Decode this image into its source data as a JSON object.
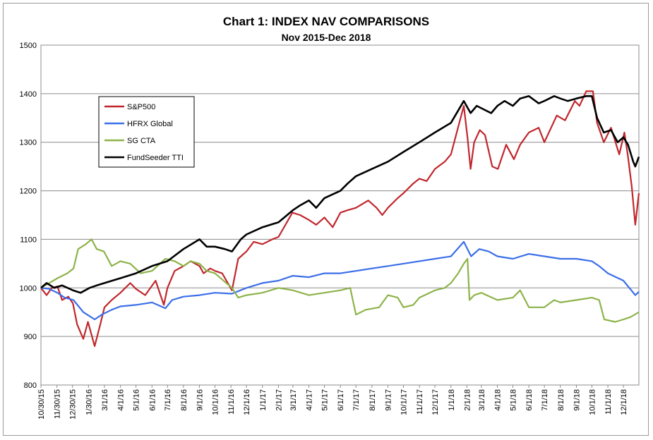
{
  "chart_data": {
    "type": "line",
    "title": "Chart 1: INDEX NAV COMPARISONS",
    "subtitle": "Nov 2015-Dec 2018",
    "ylim": [
      800,
      1500
    ],
    "y_ticks": [
      "800",
      "900",
      "1000",
      "1100",
      "1200",
      "1300",
      "1400",
      "1500"
    ],
    "x_range": [
      "2015-10-30",
      "2018-12-31"
    ],
    "x_ticks": [
      "10/30/15",
      "11/30/15",
      "12/30/15",
      "1/30/16",
      "3/1/16",
      "4/1/16",
      "5/1/16",
      "6/1/16",
      "7/1/16",
      "8/1/16",
      "9/1/16",
      "10/1/16",
      "11/1/16",
      "12/1/16",
      "1/1/17",
      "2/1/17",
      "3/1/17",
      "4/1/17",
      "5/1/17",
      "6/1/17",
      "7/1/17",
      "8/1/17",
      "9/1/17",
      "10/1/17",
      "11/1/17",
      "12/1/17",
      "1/1/18",
      "2/1/18",
      "3/1/18",
      "4/1/18",
      "5/1/18",
      "6/1/18",
      "7/1/18",
      "8/1/18",
      "9/1/18",
      "10/1/18",
      "11/1/18",
      "12/1/18"
    ],
    "grid": "horizontal",
    "legend_position": "upper-left",
    "series": [
      {
        "name": "S&P500",
        "color": "#c0272d",
        "points": [
          [
            "2015-10-30",
            1000
          ],
          [
            "2015-11-10",
            985
          ],
          [
            "2015-11-20",
            1000
          ],
          [
            "2015-12-01",
            1003
          ],
          [
            "2015-12-10",
            975
          ],
          [
            "2015-12-22",
            982
          ],
          [
            "2015-12-31",
            968
          ],
          [
            "2016-01-08",
            925
          ],
          [
            "2016-01-20",
            895
          ],
          [
            "2016-01-29",
            930
          ],
          [
            "2016-02-11",
            880
          ],
          [
            "2016-02-22",
            925
          ],
          [
            "2016-03-01",
            960
          ],
          [
            "2016-03-15",
            975
          ],
          [
            "2016-04-01",
            990
          ],
          [
            "2016-04-20",
            1010
          ],
          [
            "2016-05-01",
            998
          ],
          [
            "2016-05-19",
            985
          ],
          [
            "2016-06-08",
            1015
          ],
          [
            "2016-06-24",
            965
          ],
          [
            "2016-07-01",
            1000
          ],
          [
            "2016-07-15",
            1035
          ],
          [
            "2016-08-01",
            1045
          ],
          [
            "2016-08-15",
            1055
          ],
          [
            "2016-09-01",
            1045
          ],
          [
            "2016-09-09",
            1030
          ],
          [
            "2016-09-22",
            1040
          ],
          [
            "2016-10-01",
            1035
          ],
          [
            "2016-10-15",
            1030
          ],
          [
            "2016-11-03",
            995
          ],
          [
            "2016-11-15",
            1060
          ],
          [
            "2016-12-01",
            1075
          ],
          [
            "2016-12-15",
            1095
          ],
          [
            "2017-01-01",
            1090
          ],
          [
            "2017-01-20",
            1100
          ],
          [
            "2017-02-01",
            1105
          ],
          [
            "2017-02-28",
            1155
          ],
          [
            "2017-03-15",
            1150
          ],
          [
            "2017-04-01",
            1140
          ],
          [
            "2017-04-15",
            1130
          ],
          [
            "2017-05-01",
            1145
          ],
          [
            "2017-05-17",
            1125
          ],
          [
            "2017-06-01",
            1155
          ],
          [
            "2017-06-15",
            1160
          ],
          [
            "2017-07-01",
            1165
          ],
          [
            "2017-07-25",
            1180
          ],
          [
            "2017-08-10",
            1165
          ],
          [
            "2017-08-21",
            1150
          ],
          [
            "2017-09-01",
            1165
          ],
          [
            "2017-09-20",
            1185
          ],
          [
            "2017-10-01",
            1195
          ],
          [
            "2017-10-20",
            1215
          ],
          [
            "2017-11-01",
            1225
          ],
          [
            "2017-11-15",
            1220
          ],
          [
            "2017-12-01",
            1245
          ],
          [
            "2017-12-20",
            1260
          ],
          [
            "2018-01-01",
            1275
          ],
          [
            "2018-01-26",
            1375
          ],
          [
            "2018-02-02",
            1310
          ],
          [
            "2018-02-08",
            1245
          ],
          [
            "2018-02-15",
            1300
          ],
          [
            "2018-02-26",
            1325
          ],
          [
            "2018-03-08",
            1315
          ],
          [
            "2018-03-22",
            1250
          ],
          [
            "2018-04-02",
            1245
          ],
          [
            "2018-04-18",
            1295
          ],
          [
            "2018-05-03",
            1265
          ],
          [
            "2018-05-15",
            1295
          ],
          [
            "2018-06-01",
            1320
          ],
          [
            "2018-06-20",
            1330
          ],
          [
            "2018-07-01",
            1300
          ],
          [
            "2018-07-25",
            1355
          ],
          [
            "2018-08-10",
            1345
          ],
          [
            "2018-08-29",
            1385
          ],
          [
            "2018-09-07",
            1375
          ],
          [
            "2018-09-20",
            1405
          ],
          [
            "2018-10-03",
            1405
          ],
          [
            "2018-10-11",
            1340
          ],
          [
            "2018-10-24",
            1300
          ],
          [
            "2018-11-07",
            1330
          ],
          [
            "2018-11-23",
            1275
          ],
          [
            "2018-12-03",
            1320
          ],
          [
            "2018-12-10",
            1270
          ],
          [
            "2018-12-17",
            1210
          ],
          [
            "2018-12-24",
            1130
          ],
          [
            "2018-12-31",
            1195
          ]
        ]
      },
      {
        "name": "HFRX Global",
        "color": "#3b6ee8",
        "points": [
          [
            "2015-10-30",
            1000
          ],
          [
            "2015-11-15",
            998
          ],
          [
            "2015-12-01",
            990
          ],
          [
            "2015-12-15",
            980
          ],
          [
            "2016-01-01",
            975
          ],
          [
            "2016-01-20",
            950
          ],
          [
            "2016-02-11",
            935
          ],
          [
            "2016-02-25",
            945
          ],
          [
            "2016-03-15",
            955
          ],
          [
            "2016-04-01",
            962
          ],
          [
            "2016-05-01",
            965
          ],
          [
            "2016-06-01",
            970
          ],
          [
            "2016-06-27",
            958
          ],
          [
            "2016-07-10",
            975
          ],
          [
            "2016-08-01",
            982
          ],
          [
            "2016-09-01",
            985
          ],
          [
            "2016-10-01",
            990
          ],
          [
            "2016-11-03",
            988
          ],
          [
            "2016-12-01",
            1000
          ],
          [
            "2017-01-01",
            1010
          ],
          [
            "2017-02-01",
            1015
          ],
          [
            "2017-03-01",
            1025
          ],
          [
            "2017-04-01",
            1022
          ],
          [
            "2017-05-01",
            1030
          ],
          [
            "2017-06-01",
            1030
          ],
          [
            "2017-07-01",
            1035
          ],
          [
            "2017-08-01",
            1040
          ],
          [
            "2017-09-01",
            1045
          ],
          [
            "2017-10-01",
            1050
          ],
          [
            "2017-11-01",
            1055
          ],
          [
            "2017-12-01",
            1060
          ],
          [
            "2018-01-01",
            1065
          ],
          [
            "2018-01-26",
            1095
          ],
          [
            "2018-02-09",
            1065
          ],
          [
            "2018-02-25",
            1080
          ],
          [
            "2018-03-15",
            1075
          ],
          [
            "2018-04-01",
            1065
          ],
          [
            "2018-05-01",
            1060
          ],
          [
            "2018-06-01",
            1070
          ],
          [
            "2018-07-01",
            1065
          ],
          [
            "2018-08-01",
            1060
          ],
          [
            "2018-09-01",
            1060
          ],
          [
            "2018-10-01",
            1055
          ],
          [
            "2018-10-15",
            1045
          ],
          [
            "2018-11-01",
            1030
          ],
          [
            "2018-12-01",
            1015
          ],
          [
            "2018-12-24",
            985
          ],
          [
            "2018-12-31",
            992
          ]
        ]
      },
      {
        "name": "SG CTA",
        "color": "#8db34a",
        "points": [
          [
            "2015-10-30",
            1000
          ],
          [
            "2015-11-15",
            1010
          ],
          [
            "2015-12-01",
            1020
          ],
          [
            "2015-12-20",
            1030
          ],
          [
            "2016-01-01",
            1040
          ],
          [
            "2016-01-10",
            1080
          ],
          [
            "2016-01-25",
            1090
          ],
          [
            "2016-02-05",
            1100
          ],
          [
            "2016-02-15",
            1080
          ],
          [
            "2016-02-29",
            1075
          ],
          [
            "2016-03-15",
            1045
          ],
          [
            "2016-04-01",
            1055
          ],
          [
            "2016-04-20",
            1050
          ],
          [
            "2016-05-10",
            1030
          ],
          [
            "2016-06-01",
            1035
          ],
          [
            "2016-06-27",
            1060
          ],
          [
            "2016-07-15",
            1055
          ],
          [
            "2016-08-01",
            1045
          ],
          [
            "2016-08-15",
            1055
          ],
          [
            "2016-09-01",
            1050
          ],
          [
            "2016-09-15",
            1035
          ],
          [
            "2016-10-01",
            1030
          ],
          [
            "2016-11-03",
            1000
          ],
          [
            "2016-11-15",
            980
          ],
          [
            "2016-12-01",
            985
          ],
          [
            "2017-01-01",
            990
          ],
          [
            "2017-02-01",
            1000
          ],
          [
            "2017-03-01",
            995
          ],
          [
            "2017-04-01",
            985
          ],
          [
            "2017-05-01",
            990
          ],
          [
            "2017-06-01",
            995
          ],
          [
            "2017-06-20",
            1000
          ],
          [
            "2017-07-01",
            945
          ],
          [
            "2017-07-20",
            955
          ],
          [
            "2017-08-15",
            960
          ],
          [
            "2017-09-01",
            985
          ],
          [
            "2017-09-20",
            980
          ],
          [
            "2017-10-01",
            960
          ],
          [
            "2017-10-20",
            965
          ],
          [
            "2017-11-01",
            980
          ],
          [
            "2017-12-01",
            995
          ],
          [
            "2017-12-20",
            1000
          ],
          [
            "2018-01-01",
            1010
          ],
          [
            "2018-01-15",
            1030
          ],
          [
            "2018-01-26",
            1050
          ],
          [
            "2018-02-02",
            1060
          ],
          [
            "2018-02-06",
            975
          ],
          [
            "2018-02-15",
            985
          ],
          [
            "2018-03-01",
            990
          ],
          [
            "2018-04-01",
            975
          ],
          [
            "2018-05-01",
            980
          ],
          [
            "2018-05-15",
            995
          ],
          [
            "2018-06-01",
            960
          ],
          [
            "2018-07-01",
            960
          ],
          [
            "2018-07-20",
            975
          ],
          [
            "2018-08-01",
            970
          ],
          [
            "2018-09-01",
            975
          ],
          [
            "2018-10-01",
            980
          ],
          [
            "2018-10-15",
            975
          ],
          [
            "2018-10-25",
            935
          ],
          [
            "2018-11-15",
            930
          ],
          [
            "2018-12-01",
            935
          ],
          [
            "2018-12-15",
            940
          ],
          [
            "2018-12-31",
            950
          ]
        ]
      },
      {
        "name": "FundSeeder TTI",
        "color": "#000000",
        "points": [
          [
            "2015-10-30",
            1000
          ],
          [
            "2015-11-10",
            1010
          ],
          [
            "2015-11-25",
            1000
          ],
          [
            "2015-12-10",
            1005
          ],
          [
            "2015-12-31",
            995
          ],
          [
            "2016-01-15",
            990
          ],
          [
            "2016-02-01",
            1000
          ],
          [
            "2016-02-15",
            1005
          ],
          [
            "2016-03-01",
            1010
          ],
          [
            "2016-04-01",
            1020
          ],
          [
            "2016-05-01",
            1030
          ],
          [
            "2016-06-01",
            1045
          ],
          [
            "2016-07-01",
            1055
          ],
          [
            "2016-08-01",
            1080
          ],
          [
            "2016-09-01",
            1100
          ],
          [
            "2016-09-15",
            1085
          ],
          [
            "2016-10-01",
            1085
          ],
          [
            "2016-10-20",
            1080
          ],
          [
            "2016-11-03",
            1075
          ],
          [
            "2016-11-20",
            1100
          ],
          [
            "2016-12-01",
            1110
          ],
          [
            "2017-01-01",
            1125
          ],
          [
            "2017-02-01",
            1135
          ],
          [
            "2017-03-01",
            1160
          ],
          [
            "2017-03-15",
            1170
          ],
          [
            "2017-04-01",
            1180
          ],
          [
            "2017-04-15",
            1165
          ],
          [
            "2017-05-01",
            1185
          ],
          [
            "2017-06-01",
            1200
          ],
          [
            "2017-06-15",
            1215
          ],
          [
            "2017-07-01",
            1230
          ],
          [
            "2017-08-01",
            1245
          ],
          [
            "2017-09-01",
            1260
          ],
          [
            "2017-10-01",
            1280
          ],
          [
            "2017-11-01",
            1300
          ],
          [
            "2017-12-01",
            1320
          ],
          [
            "2018-01-01",
            1340
          ],
          [
            "2018-01-26",
            1385
          ],
          [
            "2018-02-08",
            1360
          ],
          [
            "2018-02-20",
            1375
          ],
          [
            "2018-03-01",
            1370
          ],
          [
            "2018-03-20",
            1360
          ],
          [
            "2018-04-01",
            1375
          ],
          [
            "2018-04-15",
            1385
          ],
          [
            "2018-05-01",
            1375
          ],
          [
            "2018-05-15",
            1390
          ],
          [
            "2018-06-01",
            1395
          ],
          [
            "2018-06-20",
            1380
          ],
          [
            "2018-07-01",
            1385
          ],
          [
            "2018-07-20",
            1395
          ],
          [
            "2018-08-01",
            1390
          ],
          [
            "2018-08-15",
            1385
          ],
          [
            "2018-09-01",
            1390
          ],
          [
            "2018-09-20",
            1395
          ],
          [
            "2018-10-01",
            1395
          ],
          [
            "2018-10-11",
            1350
          ],
          [
            "2018-10-24",
            1320
          ],
          [
            "2018-11-07",
            1325
          ],
          [
            "2018-11-20",
            1300
          ],
          [
            "2018-12-01",
            1310
          ],
          [
            "2018-12-10",
            1295
          ],
          [
            "2018-12-20",
            1260
          ],
          [
            "2018-12-24",
            1250
          ],
          [
            "2018-12-31",
            1270
          ]
        ]
      }
    ]
  }
}
